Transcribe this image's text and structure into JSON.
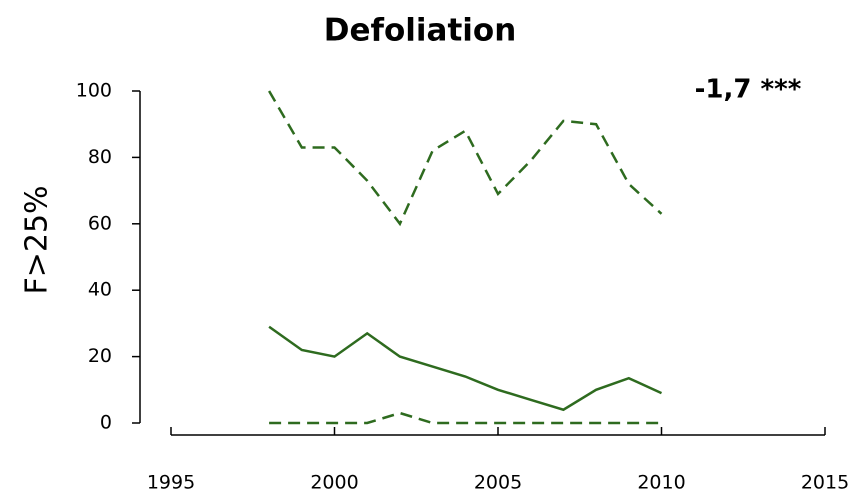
{
  "chart_data": {
    "type": "line",
    "title": "Defoliation",
    "annotation": "-1,7 ***",
    "y_label": "F>25%",
    "x": [
      1998,
      1999,
      2000,
      2001,
      2002,
      2003,
      2004,
      2005,
      2006,
      2007,
      2008,
      2009,
      2010
    ],
    "series": [
      {
        "color": "#2e6b1f",
        "dash": true,
        "values": [
          100,
          83,
          83,
          73,
          60,
          82,
          88,
          69,
          79,
          91,
          90,
          72,
          63
        ]
      },
      {
        "color": "#2e6b1f",
        "dash": false,
        "values": [
          29,
          22,
          20,
          27,
          20,
          17,
          14,
          10,
          7,
          4,
          10,
          13.5,
          9
        ]
      },
      {
        "color": "#2e6b1f",
        "dash": true,
        "values": [
          0,
          0,
          0,
          0,
          3,
          0,
          0,
          0,
          0,
          0,
          0,
          0,
          0
        ]
      }
    ],
    "xlim": [
      1995,
      2015
    ],
    "xticks": [
      1995,
      2000,
      2005,
      2010,
      2015
    ],
    "ylim": [
      0,
      100
    ],
    "yticks": [
      0,
      20,
      40,
      60,
      80,
      100
    ]
  }
}
